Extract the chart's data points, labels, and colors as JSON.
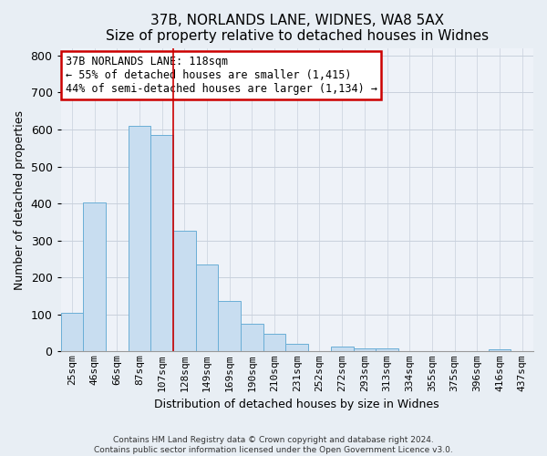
{
  "title": "37B, NORLANDS LANE, WIDNES, WA8 5AX",
  "subtitle": "Size of property relative to detached houses in Widnes",
  "xlabel": "Distribution of detached houses by size in Widnes",
  "ylabel": "Number of detached properties",
  "bar_labels": [
    "25sqm",
    "46sqm",
    "66sqm",
    "87sqm",
    "107sqm",
    "128sqm",
    "149sqm",
    "169sqm",
    "190sqm",
    "210sqm",
    "231sqm",
    "252sqm",
    "272sqm",
    "293sqm",
    "313sqm",
    "334sqm",
    "355sqm",
    "375sqm",
    "396sqm",
    "416sqm",
    "437sqm"
  ],
  "bar_values": [
    105,
    403,
    0,
    610,
    585,
    327,
    236,
    136,
    76,
    48,
    20,
    0,
    13,
    8,
    8,
    0,
    0,
    0,
    0,
    6,
    0
  ],
  "bar_color": "#c8ddf0",
  "bar_edge_color": "#6aaed6",
  "vline_x_index": 4.5,
  "vline_color": "#cc0000",
  "annotation_text": "37B NORLANDS LANE: 118sqm\n← 55% of detached houses are smaller (1,415)\n44% of semi-detached houses are larger (1,134) →",
  "annotation_box_color": "#ffffff",
  "annotation_box_edge_color": "#cc0000",
  "ylim": [
    0,
    820
  ],
  "yticks": [
    0,
    100,
    200,
    300,
    400,
    500,
    600,
    700,
    800
  ],
  "footer_line1": "Contains HM Land Registry data © Crown copyright and database right 2024.",
  "footer_line2": "Contains public sector information licensed under the Open Government Licence v3.0.",
  "bg_color": "#e8eef4",
  "plot_bg_color": "#eef2f8",
  "title_fontsize": 11,
  "ylabel_fontsize": 9,
  "xlabel_fontsize": 9,
  "tick_fontsize": 8
}
